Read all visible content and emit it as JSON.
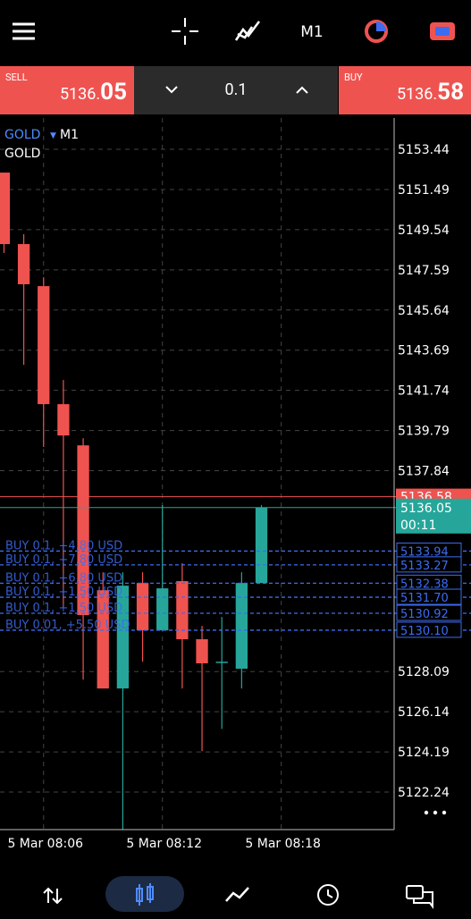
{
  "toolbar": {
    "timeframe": "M1"
  },
  "trade_panel": {
    "sell": {
      "label": "SELL",
      "price_small": "5136.",
      "price_large": "05"
    },
    "buy": {
      "label": "BUY",
      "price_small": "5136.",
      "price_large": "58"
    },
    "volume": "0.1"
  },
  "chart_header": {
    "symbol": "GOLD",
    "timeframe": "M1",
    "description": "GOLD"
  },
  "chart_data": {
    "type": "candlestick",
    "up_color": "#26a69a",
    "down_color": "#ef5350",
    "grid": true,
    "ylim": [
      5120.42,
      5154.96
    ],
    "yticks": [
      5153.44,
      5151.49,
      5149.54,
      5147.59,
      5145.64,
      5143.69,
      5141.74,
      5139.79,
      5137.84,
      5128.09,
      5126.14,
      5124.19,
      5122.24
    ],
    "xlim": [
      -0.2,
      19.7
    ],
    "xticks": [
      {
        "value": 2,
        "label": "5 Mar 08:06"
      },
      {
        "value": 8,
        "label": "5 Mar 08:12"
      },
      {
        "value": 14,
        "label": "5 Mar 08:18"
      }
    ],
    "open": [
      5152.31,
      5148.84,
      5146.8,
      5141.07,
      5139.07,
      5132.04,
      5127.27,
      5132.39,
      5130.09,
      5132.48,
      5129.66,
      5128.57,
      5128.23,
      5132.39
    ],
    "high": [
      5152.31,
      5149.32,
      5147.23,
      5142.24,
      5139.42,
      5132.91,
      5132.91,
      5132.91,
      5136.17,
      5133.35,
      5130.31,
      5130.74,
      5132.91,
      5136.17
    ],
    "low": [
      5148.41,
      5142.98,
      5138.99,
      5131.17,
      5127.7,
      5127.27,
      5120.41,
      5128.57,
      5130.09,
      5127.27,
      5124.23,
      5125.31,
      5127.27,
      5132.39
    ],
    "close": [
      5148.84,
      5146.89,
      5141.07,
      5139.55,
      5130.83,
      5127.27,
      5132.26,
      5130.09,
      5132.13,
      5129.66,
      5128.49,
      5128.57,
      5132.39,
      5136.04
    ],
    "ask": {
      "value": 5136.58,
      "label": "5136.58",
      "color": "#ef5350"
    },
    "bid": {
      "value": 5136.05,
      "label": "5136.05",
      "timer": "00:11",
      "color": "#26a69a"
    },
    "orders": [
      {
        "value": 5133.94,
        "label": "5133.94",
        "text": "BUY 0.1, +4.80 USD"
      },
      {
        "value": 5133.27,
        "label": "5133.27",
        "text": "BUY 0.1, +7.80 USD"
      },
      {
        "value": 5132.38,
        "label": "5132.38",
        "text": "BUY 0.1, +6.80 USD"
      },
      {
        "value": 5131.7,
        "label": "5131.70",
        "text": "BUY 0.1, +1.50 USD"
      },
      {
        "value": 5130.92,
        "label": "5130.92",
        "text": "BUY 0.1, +1.50 USD"
      },
      {
        "value": 5130.1,
        "label": "5130.10",
        "text": "BUY 0.01, +5.50 USD"
      }
    ],
    "order_color": "#3d6cf0"
  }
}
